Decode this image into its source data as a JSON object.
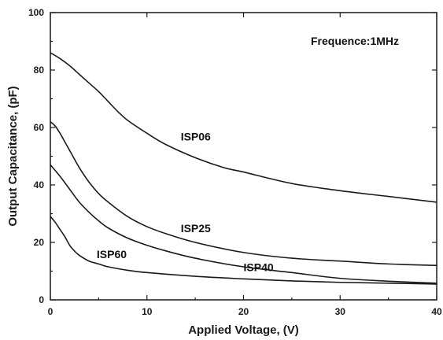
{
  "chart_data": {
    "type": "line",
    "title": "",
    "xlabel": "Applied Voltage, (V)",
    "ylabel": "Output Capacitance, (pF)",
    "xlim": [
      0,
      40
    ],
    "ylim": [
      0,
      100
    ],
    "x_ticks": [
      0,
      10,
      20,
      30,
      40
    ],
    "y_ticks": [
      0,
      20,
      40,
      60,
      80,
      100
    ],
    "grid": false,
    "legend": "none",
    "line_color": "#1a1a1a",
    "annotation": "Frequence:1MHz",
    "series": [
      {
        "name": "ISP06",
        "x": [
          0,
          1,
          2,
          3,
          4,
          5,
          6,
          7,
          8,
          10,
          12,
          15,
          18,
          20,
          25,
          30,
          35,
          40
        ],
        "y": [
          86,
          84,
          81.5,
          78.5,
          75.5,
          72.5,
          69,
          65.5,
          62.5,
          58,
          54,
          49.5,
          46,
          44.5,
          40.5,
          38,
          36,
          34
        ]
      },
      {
        "name": "ISP25",
        "x": [
          0,
          0.5,
          1,
          1.5,
          2,
          3,
          4,
          5,
          6,
          8,
          10,
          12,
          15,
          20,
          25,
          30,
          35,
          40
        ],
        "y": [
          62,
          60.5,
          58,
          55,
          52,
          46,
          41,
          37,
          34,
          29,
          25.5,
          23,
          20,
          16.5,
          14.5,
          13.5,
          12.5,
          12
        ]
      },
      {
        "name": "ISP40",
        "x": [
          0,
          1,
          2,
          3,
          4,
          5,
          6,
          8,
          10,
          12,
          15,
          20,
          25,
          30,
          35,
          40
        ],
        "y": [
          47,
          43,
          38.5,
          34,
          30.5,
          27.5,
          25,
          21.5,
          19,
          17,
          14.5,
          11.5,
          9.5,
          7.5,
          6.5,
          5.8
        ]
      },
      {
        "name": "ISP60",
        "x": [
          0,
          0.5,
          1,
          1.5,
          2,
          2.5,
          3,
          4,
          5,
          6,
          8,
          10,
          15,
          20,
          25,
          30,
          35,
          40
        ],
        "y": [
          29,
          27,
          24.5,
          22,
          19,
          17,
          15.5,
          13.5,
          12.5,
          11.5,
          10.3,
          9.5,
          8.2,
          7.3,
          6.6,
          6.1,
          5.8,
          5.5
        ]
      }
    ],
    "series_label_anchor": [
      {
        "name": "ISP06",
        "x": 13.5,
        "y": 55.5
      },
      {
        "name": "ISP25",
        "x": 13.5,
        "y": 23.5
      },
      {
        "name": "ISP40",
        "x": 20.0,
        "y": 10.0
      },
      {
        "name": "ISP60",
        "x": 4.8,
        "y": 14.5
      }
    ]
  }
}
